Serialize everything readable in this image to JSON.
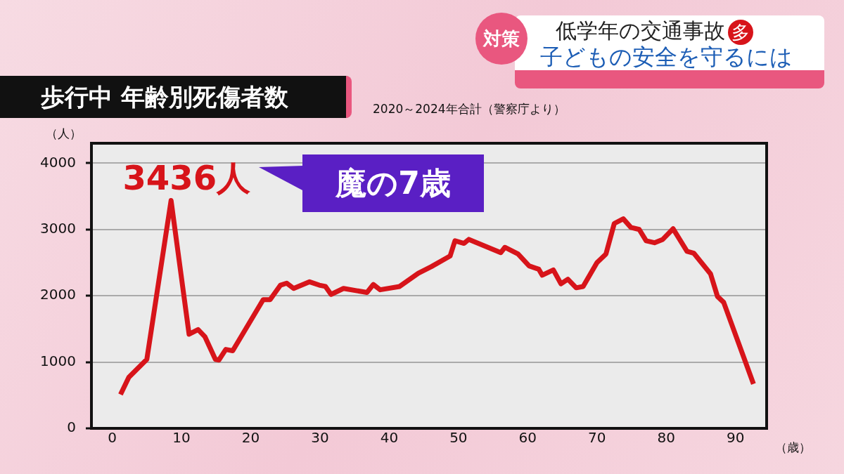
{
  "chart_data": {
    "type": "line",
    "title": "歩行中 年齢別死傷者数",
    "subtitle": "2020～2024年合計（警察庁より）",
    "ylabel": "（人）",
    "xlabel": "（歳）",
    "annotations": [
      "魔の7歳",
      {
        "text": "3436人",
        "x": 8.5,
        "y": 3436
      },
      "対策",
      "低学年の交通事故",
      "多",
      "子どもの安全を守るには"
    ],
    "x": [
      1.2,
      2.4,
      5.0,
      8.5,
      11.1,
      12.4,
      13.4,
      14.9,
      15.4,
      16.4,
      17.4,
      21.8,
      22.8,
      24.3,
      25.2,
      26.2,
      28.5,
      29.9,
      30.8,
      31.6,
      33.4,
      36.8,
      37.7,
      38.7,
      41.5,
      44.2,
      46.1,
      48.8,
      49.5,
      50.8,
      51.5,
      56.1,
      56.7,
      58.6,
      60.2,
      61.6,
      62.1,
      63.7,
      64.8,
      65.8,
      67.0,
      68.0,
      70.0,
      71.3,
      72.5,
      73.8,
      74.9,
      76.1,
      77.1,
      78.3,
      79.5,
      81.0,
      83.0,
      84.0,
      86.4,
      87.4,
      88.3,
      92.6
    ],
    "series": [
      {
        "color": "#d7141a",
        "values": [
          510,
          770,
          1040,
          3436,
          1420,
          1490,
          1380,
          1040,
          1030,
          1190,
          1170,
          1940,
          1940,
          2160,
          2190,
          2110,
          2210,
          2160,
          2140,
          2020,
          2110,
          2050,
          2170,
          2090,
          2140,
          2340,
          2440,
          2600,
          2830,
          2790,
          2850,
          2650,
          2730,
          2630,
          2450,
          2400,
          2310,
          2390,
          2180,
          2250,
          2120,
          2140,
          2500,
          2630,
          3090,
          3160,
          3030,
          3000,
          2830,
          2800,
          2850,
          3010,
          2670,
          2640,
          2330,
          1990,
          1900,
          670
        ]
      }
    ],
    "xlim": [
      -3,
      94.5
    ],
    "ylim": [
      0,
      4300
    ],
    "xticks": [
      0,
      10,
      20,
      30,
      40,
      50,
      60,
      70,
      80,
      90
    ],
    "yticks": [
      0,
      1000,
      2000,
      3000,
      4000
    ],
    "grid": "y",
    "legend": false,
    "marker": "none",
    "line_style": "solid"
  }
}
